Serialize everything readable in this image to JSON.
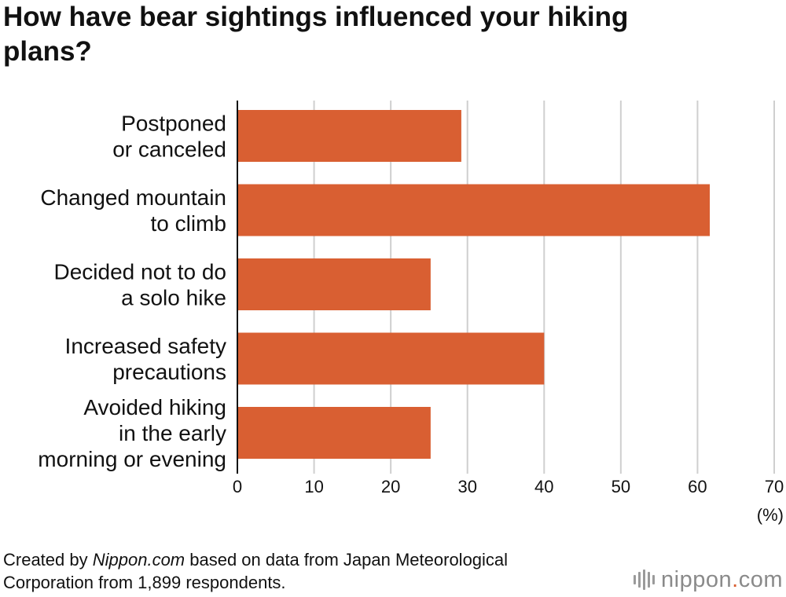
{
  "title": "How have bear sightings influenced your hiking plans?",
  "chart_data": {
    "type": "bar",
    "orientation": "horizontal",
    "title": "How have bear sightings influenced your hiking plans?",
    "categories": [
      [
        "Postponed",
        "or canceled"
      ],
      [
        "Changed mountain",
        "to climb"
      ],
      [
        "Decided not to do",
        "a solo hike"
      ],
      [
        "Increased safety",
        "precautions"
      ],
      [
        "Avoided hiking",
        "in the early",
        "morning or evening"
      ]
    ],
    "values": [
      29.2,
      61.6,
      25.2,
      40.0,
      25.2
    ],
    "xlim": [
      0,
      70
    ],
    "xticks": [
      0,
      10,
      20,
      30,
      40,
      50,
      60,
      70
    ],
    "xlabel": "(%)",
    "bar_color": "#d95f32",
    "grid_color": "#cfcfcf",
    "grid": true
  },
  "footer": {
    "credit_prefix": "Created by ",
    "credit_source": "Nippon.com",
    "credit_rest": " based on data from Japan Meteorological Corporation from 1,899 respondents."
  },
  "logo": {
    "name": "nippon",
    "dot": ".",
    "suffix": "com",
    "accent_color": "#d95f32"
  }
}
